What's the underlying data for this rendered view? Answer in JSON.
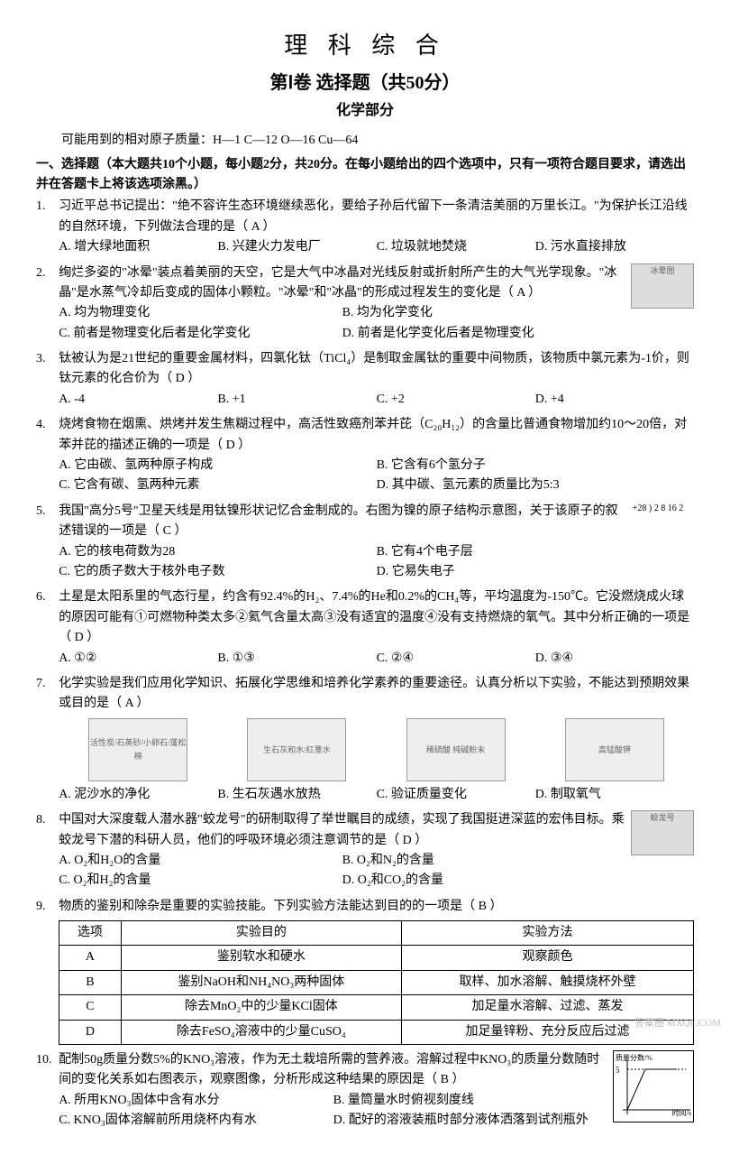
{
  "titles": {
    "main": "理 科 综 合",
    "sub": "第Ⅰ卷  选择题（共50分）",
    "section": "化学部分"
  },
  "atomic_mass": "可能用到的相对原子质量：H—1   C—12   O—16   Cu—64",
  "section_header": "一、选择题（本大题共10个小题，每小题2分，共20分。在每小题给出的四个选项中，只有一项符合题目要求，请选出并在答题卡上将该选项涂黑。）",
  "questions": [
    {
      "num": "1.",
      "text": "习近平总书记提出：\"绝不容许生态环境继续恶化，要给子孙后代留下一条清洁美丽的万里长江。\"为保护长江沿线的自然环境，下列做法合理的是（   A   ）",
      "opts": [
        "A. 增大绿地面积",
        "B. 兴建火力发电厂",
        "C. 垃圾就地焚烧",
        "D. 污水直接排放"
      ],
      "layout": "col4",
      "figure_right": false
    },
    {
      "num": "2.",
      "text": "绚烂多姿的\"冰晕\"装点着美丽的天空，它是大气中冰晶对光线反射或折射所产生的大气光学现象。\"冰晶\"是水蒸气冷却后变成的固体小颗粒。\"冰晕\"和\"冰晶\"的形成过程发生的变化是（   A   ）",
      "opts": [
        "A. 均为物理变化",
        "B. 均为化学变化",
        "C. 前者是物理变化后者是化学变化",
        "D. 前者是化学变化后者是物理变化"
      ],
      "layout": "col2",
      "figure_right": true,
      "figure_alt": "冰晕图"
    },
    {
      "num": "3.",
      "text": "钛被认为是21世纪的重要金属材料，四氯化钛（TiCl₄）是制取金属钛的重要中间物质，该物质中氯元素为-1价，则钛元素的化合价为（   D   ）",
      "opts": [
        "A. -4",
        "B. +1",
        "C. +2",
        "D. +4"
      ],
      "layout": "col4",
      "figure_right": false
    },
    {
      "num": "4.",
      "text": "烧烤食物在烟熏、烘烤并发生焦糊过程中，高活性致癌剂苯并芘（C₂₀H₁₂）的含量比普通食物增加约10～20倍，对苯并芘的描述正确的一项是（   D   ）",
      "opts": [
        "A. 它由碳、氢两种原子构成",
        "B. 它含有6个氢分子",
        "C. 它含有碳、氢两种元素",
        "D. 其中碳、氢元素的质量比为5:3"
      ],
      "layout": "col2",
      "figure_right": false
    },
    {
      "num": "5.",
      "text": "我国\"高分5号\"卫星天线是用钛镍形状记忆合金制成的。右图为镍的原子结构示意图，关于该原子的叙述错误的一项是（   C   ）",
      "opts": [
        "A. 它的核电荷数为28",
        "B. 它有4个电子层",
        "C. 它的质子数大于核外电子数",
        "D. 它易失电子"
      ],
      "layout": "col2",
      "figure_right": false,
      "atom_diagram": "+28 ) 2 8 16 2"
    },
    {
      "num": "6.",
      "text": "土星是太阳系里的气态行星，约含有92.4%的H₂、7.4%的He和0.2%的CH₄等，平均温度为-150℃。它没燃烧成火球的原因可能有①可燃物种类太多②氦气含量太高③没有适宜的温度④没有支持燃烧的氧气。其中分析正确的一项是（   D   ）",
      "opts": [
        "A. ①②",
        "B. ①③",
        "C. ②④",
        "D. ③④"
      ],
      "layout": "col4",
      "figure_right": false
    },
    {
      "num": "7.",
      "text": "化学实验是我们应用化学知识、拓展化学思维和培养化学素养的重要途径。认真分析以下实验，不能达到预期效果或目的是（   A   ）",
      "opts": [
        "A. 泥沙水的净化",
        "B. 生石灰遇水放热",
        "C. 验证质量变化",
        "D. 制取氧气"
      ],
      "layout": "col4",
      "figure_right": false,
      "figure_row": true,
      "figure_labels": [
        "活性炭/石英砂/小卵石/蓬松棉",
        "生石灰和水/红墨水",
        "稀硫酸 纯碱粉末",
        "高锰酸钾"
      ]
    },
    {
      "num": "8.",
      "text": "中国对大深度载人潜水器\"蛟龙号\"的研制取得了举世瞩目的成绩，实现了我国挺进深蓝的宏伟目标。乘蛟龙号下潜的科研人员，他们的呼吸环境必须注意调节的是（   D   ）",
      "opts": [
        "A. O₂和H₂O的含量",
        "B. O₂和N₂的含量",
        "C. O₂和H₂的含量",
        "D. O₂和CO₂的含量"
      ],
      "layout": "col2",
      "figure_right": true,
      "figure_alt": "蛟龙号"
    },
    {
      "num": "9.",
      "text": "物质的鉴别和除杂是重要的实验技能。下列实验方法能达到目的的一项是（   B   ）",
      "opts": [],
      "layout": "col1",
      "figure_right": false,
      "table": {
        "headers": [
          "选项",
          "实验目的",
          "实验方法"
        ],
        "rows": [
          [
            "A",
            "鉴别软水和硬水",
            "观察颜色"
          ],
          [
            "B",
            "鉴别NaOH和NH₄NO₃两种固体",
            "取样、加水溶解、触摸烧杯外壁"
          ],
          [
            "C",
            "除去MnO₂中的少量KCl固体",
            "加足量水溶解、过滤、蒸发"
          ],
          [
            "D",
            "除去FeSO₄溶液中的少量CuSO₄",
            "加足量锌粉、充分反应后过滤"
          ]
        ]
      }
    },
    {
      "num": "10.",
      "text": "配制50g质量分数5%的KNO₃溶液，作为无土栽培所需的营养液。溶解过程中KNO₃的质量分数随时间的变化关系如右图表示，观察图像，分析形成这种结果的原因是（   B   ）",
      "opts": [
        "A. 所用KNO₃固体中含有水分",
        "B. 量筒量水时俯视刻度线",
        "C. KNO₃固体溶解前所用烧杯内有水",
        "D. 配好的溶液装瓶时部分液体洒落到试剂瓶外"
      ],
      "layout": "col2",
      "figure_right": false,
      "graph": {
        "y_label": "质量分数/%",
        "x_label": "时间/s",
        "y_tick": "5"
      }
    }
  ],
  "watermark": "答案圈 MXQE.COM"
}
